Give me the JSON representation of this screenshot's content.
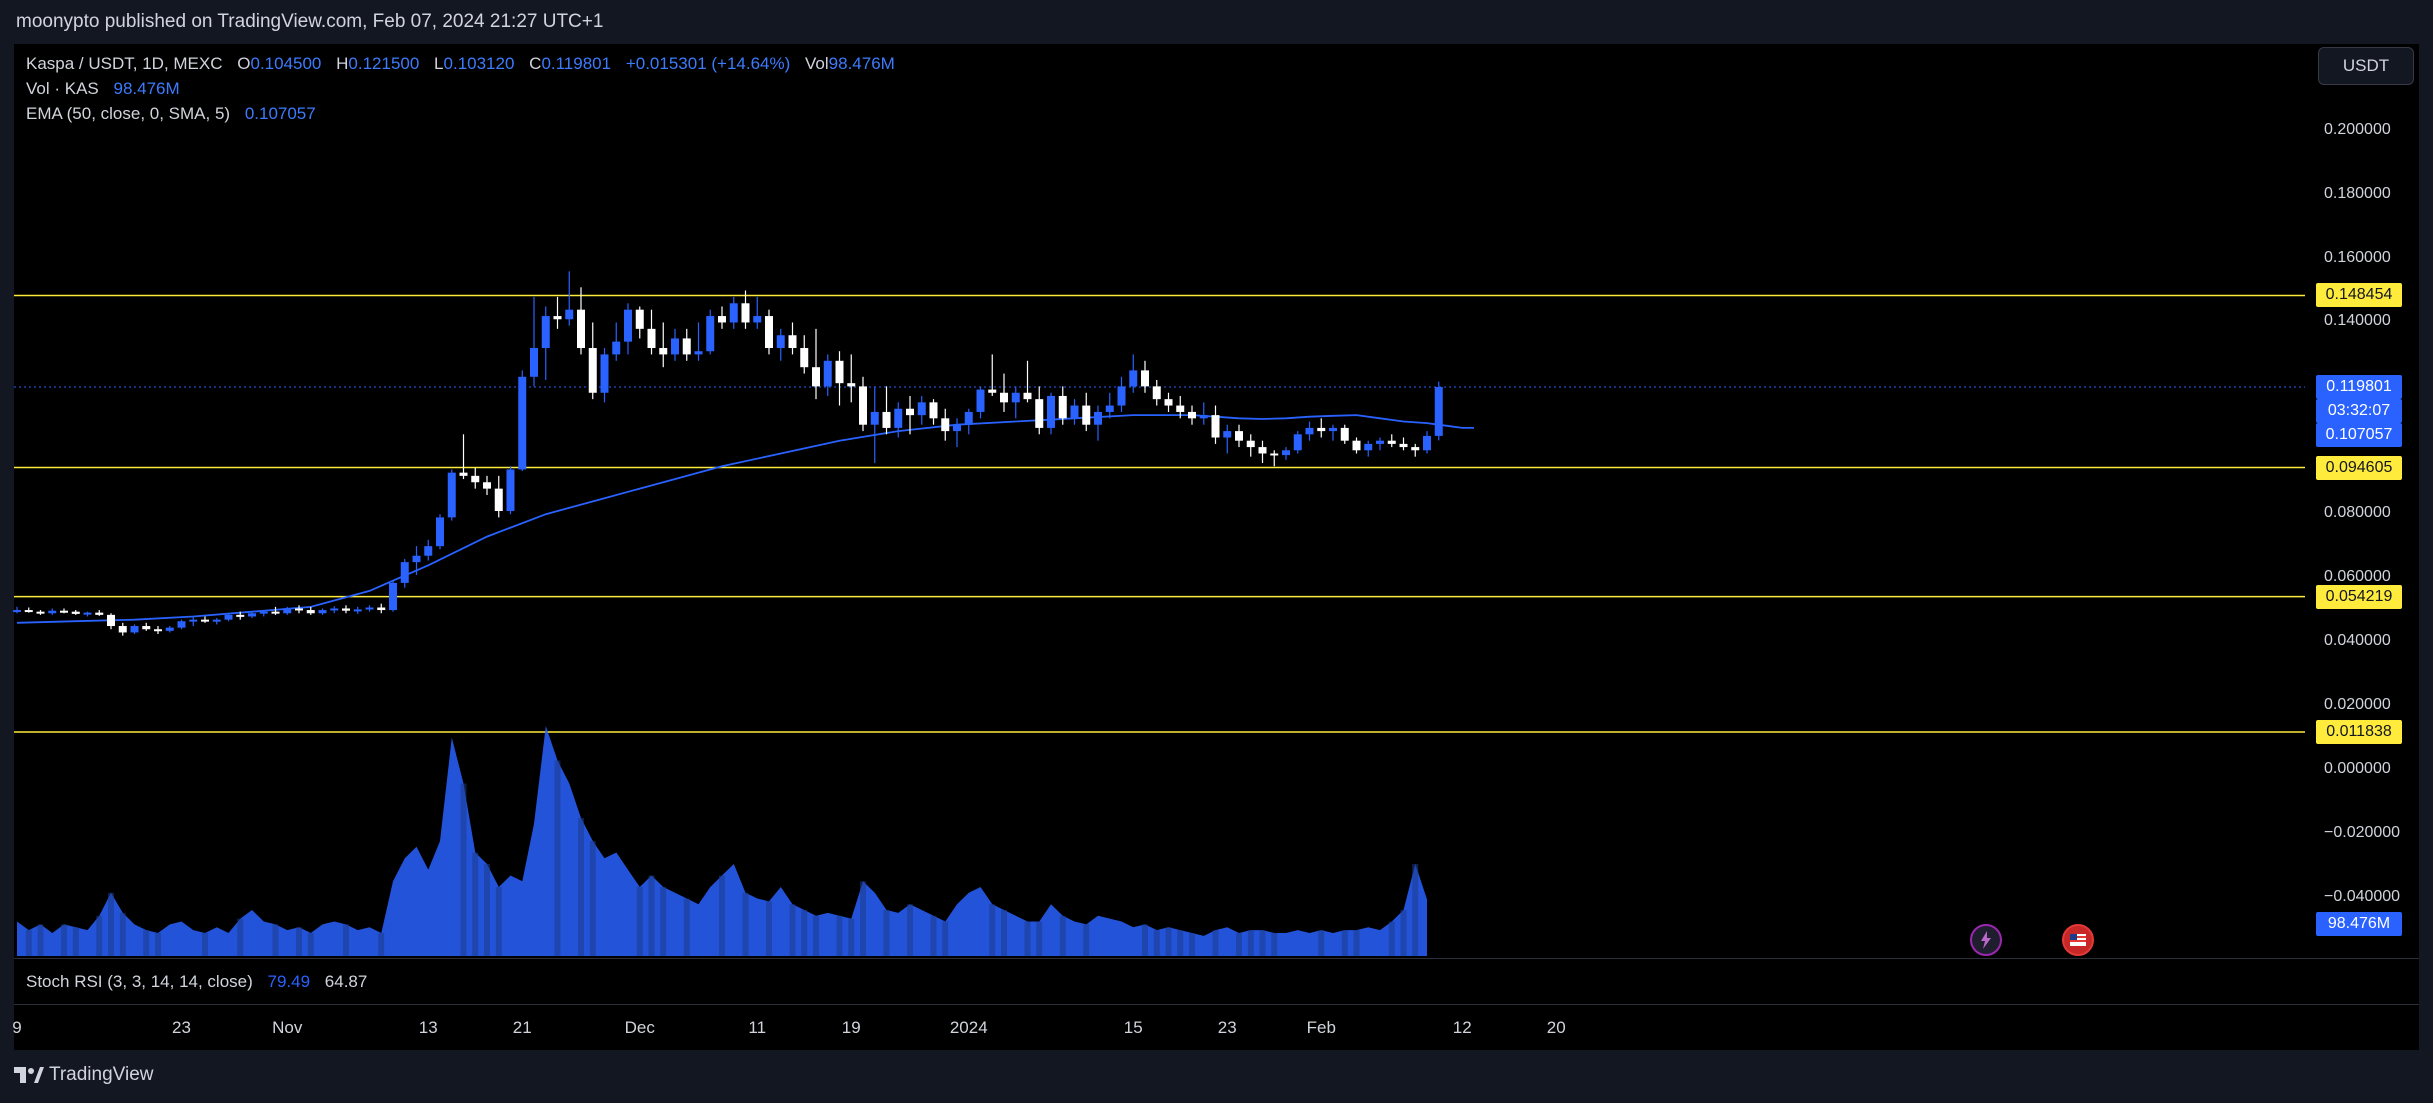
{
  "publish_line": "moonypto published on TradingView.com, Feb 07, 2024 21:27 UTC+1",
  "legend": {
    "symbol": "Kaspa / USDT, 1D, MEXC",
    "o_label": "O",
    "o": "0.104500",
    "h_label": "H",
    "h": "0.121500",
    "l_label": "L",
    "l": "0.103120",
    "c_label": "C",
    "c": "0.119801",
    "change": "+0.015301 (+14.64%)",
    "vol_label": "Vol",
    "vol": "98.476M",
    "vol_line_label": "Vol · KAS",
    "vol_line_value": "98.476M",
    "ema_label": "EMA (50, close, 0, SMA, 5)",
    "ema_value": "0.107057",
    "stoch_label": "Stoch RSI (3, 3, 14, 14, close)",
    "stoch_k": "79.49",
    "stoch_d": "64.87"
  },
  "currency_button": "USDT",
  "footer_logo": "TradingView",
  "colors": {
    "bull": "#2962ff",
    "bear": "#ffffff",
    "ema": "#2962ff",
    "hline": "#ffeb3b",
    "volume": "#2962ff",
    "stoch_k": "#2962ff",
    "stoch_d": "#ffffff"
  },
  "chart_data": {
    "type": "candlestick",
    "y_ticks": [
      "0.200000",
      "0.180000",
      "0.160000",
      "0.140000",
      "0.080000",
      "0.060000",
      "0.040000",
      "0.020000",
      "0.000000",
      "−0.020000",
      "−0.040000"
    ],
    "y_tick_values": [
      0.2,
      0.18,
      0.16,
      0.14,
      0.08,
      0.06,
      0.04,
      0.02,
      0,
      -0.02,
      -0.04
    ],
    "ylim": [
      -0.057,
      0.219
    ],
    "x_ticks": [
      "9",
      "23",
      "Nov",
      "13",
      "21",
      "Dec",
      "11",
      "19",
      "2024",
      "15",
      "23",
      "Feb",
      "12",
      "20"
    ],
    "x_tick_days": [
      0,
      14,
      23,
      35,
      43,
      53,
      63,
      71,
      81,
      95,
      103,
      111,
      123,
      131
    ],
    "horizontal_levels": [
      {
        "value": 0.148454,
        "label": "0.148454"
      },
      {
        "value": 0.094605,
        "label": "0.094605"
      },
      {
        "value": 0.054219,
        "label": "0.054219"
      },
      {
        "value": 0.011838,
        "label": "0.011838"
      }
    ],
    "last_price": {
      "value": 0.119801,
      "label": "0.119801",
      "countdown": "03:32:07"
    },
    "ema_last": {
      "value": 0.107057,
      "label": "0.107057"
    },
    "volume_last": {
      "label": "98.476M"
    },
    "candles": [
      [
        0.0495,
        0.051,
        0.049,
        0.05
      ],
      [
        0.05,
        0.0508,
        0.0492,
        0.0495
      ],
      [
        0.0495,
        0.05,
        0.0485,
        0.049
      ],
      [
        0.049,
        0.0505,
        0.0485,
        0.0498
      ],
      [
        0.0498,
        0.0505,
        0.049,
        0.0495
      ],
      [
        0.0495,
        0.05,
        0.0485,
        0.0488
      ],
      [
        0.0488,
        0.0495,
        0.048,
        0.0492
      ],
      [
        0.0492,
        0.05,
        0.0482,
        0.0485
      ],
      [
        0.0485,
        0.049,
        0.044,
        0.045
      ],
      [
        0.045,
        0.046,
        0.042,
        0.043
      ],
      [
        0.043,
        0.0455,
        0.0425,
        0.045
      ],
      [
        0.045,
        0.046,
        0.0435,
        0.044
      ],
      [
        0.044,
        0.045,
        0.0425,
        0.0435
      ],
      [
        0.0435,
        0.045,
        0.043,
        0.0445
      ],
      [
        0.0445,
        0.047,
        0.044,
        0.0465
      ],
      [
        0.0465,
        0.048,
        0.045,
        0.047
      ],
      [
        0.047,
        0.048,
        0.046,
        0.0465
      ],
      [
        0.0465,
        0.0475,
        0.0455,
        0.047
      ],
      [
        0.047,
        0.049,
        0.0465,
        0.0485
      ],
      [
        0.0485,
        0.0495,
        0.047,
        0.048
      ],
      [
        0.048,
        0.0495,
        0.0475,
        0.049
      ],
      [
        0.049,
        0.05,
        0.048,
        0.0495
      ],
      [
        0.0495,
        0.051,
        0.0485,
        0.049
      ],
      [
        0.049,
        0.051,
        0.0485,
        0.0505
      ],
      [
        0.0505,
        0.0515,
        0.049,
        0.05
      ],
      [
        0.05,
        0.051,
        0.0485,
        0.049
      ],
      [
        0.049,
        0.0505,
        0.0485,
        0.05
      ],
      [
        0.05,
        0.0512,
        0.049,
        0.0505
      ],
      [
        0.0505,
        0.0515,
        0.049,
        0.0498
      ],
      [
        0.0498,
        0.051,
        0.0488,
        0.0502
      ],
      [
        0.0502,
        0.0515,
        0.0495,
        0.0508
      ],
      [
        0.0508,
        0.052,
        0.049,
        0.05
      ],
      [
        0.05,
        0.059,
        0.0495,
        0.0585
      ],
      [
        0.0585,
        0.066,
        0.057,
        0.065
      ],
      [
        0.065,
        0.07,
        0.061,
        0.067
      ],
      [
        0.067,
        0.072,
        0.0655,
        0.07
      ],
      [
        0.07,
        0.08,
        0.069,
        0.079
      ],
      [
        0.079,
        0.094,
        0.078,
        0.093
      ],
      [
        0.093,
        0.105,
        0.091,
        0.092
      ],
      [
        0.092,
        0.0945,
        0.088,
        0.09
      ],
      [
        0.09,
        0.092,
        0.086,
        0.088
      ],
      [
        0.088,
        0.092,
        0.079,
        0.081
      ],
      [
        0.081,
        0.095,
        0.08,
        0.094
      ],
      [
        0.094,
        0.125,
        0.0935,
        0.123
      ],
      [
        0.123,
        0.148,
        0.12,
        0.132
      ],
      [
        0.132,
        0.145,
        0.122,
        0.142
      ],
      [
        0.142,
        0.148,
        0.138,
        0.141
      ],
      [
        0.141,
        0.156,
        0.139,
        0.144
      ],
      [
        0.144,
        0.151,
        0.13,
        0.132
      ],
      [
        0.132,
        0.14,
        0.116,
        0.118
      ],
      [
        0.118,
        0.132,
        0.115,
        0.13
      ],
      [
        0.13,
        0.14,
        0.128,
        0.134
      ],
      [
        0.134,
        0.146,
        0.13,
        0.144
      ],
      [
        0.144,
        0.145,
        0.135,
        0.138
      ],
      [
        0.138,
        0.144,
        0.13,
        0.132
      ],
      [
        0.132,
        0.14,
        0.126,
        0.13
      ],
      [
        0.13,
        0.138,
        0.128,
        0.135
      ],
      [
        0.135,
        0.138,
        0.128,
        0.13
      ],
      [
        0.13,
        0.14,
        0.128,
        0.131
      ],
      [
        0.131,
        0.144,
        0.13,
        0.142
      ],
      [
        0.142,
        0.145,
        0.138,
        0.14
      ],
      [
        0.14,
        0.148,
        0.138,
        0.146
      ],
      [
        0.146,
        0.15,
        0.138,
        0.14
      ],
      [
        0.14,
        0.148,
        0.138,
        0.142
      ],
      [
        0.142,
        0.144,
        0.13,
        0.132
      ],
      [
        0.132,
        0.138,
        0.128,
        0.136
      ],
      [
        0.136,
        0.14,
        0.13,
        0.132
      ],
      [
        0.132,
        0.136,
        0.124,
        0.126
      ],
      [
        0.126,
        0.138,
        0.116,
        0.12
      ],
      [
        0.12,
        0.13,
        0.117,
        0.128
      ],
      [
        0.128,
        0.131,
        0.114,
        0.121
      ],
      [
        0.121,
        0.13,
        0.115,
        0.12
      ],
      [
        0.12,
        0.123,
        0.106,
        0.108
      ],
      [
        0.108,
        0.12,
        0.096,
        0.112
      ],
      [
        0.112,
        0.12,
        0.105,
        0.107
      ],
      [
        0.107,
        0.115,
        0.104,
        0.113
      ],
      [
        0.113,
        0.117,
        0.105,
        0.111
      ],
      [
        0.111,
        0.117,
        0.108,
        0.115
      ],
      [
        0.115,
        0.116,
        0.108,
        0.11
      ],
      [
        0.11,
        0.113,
        0.103,
        0.106
      ],
      [
        0.106,
        0.11,
        0.101,
        0.108
      ],
      [
        0.108,
        0.113,
        0.105,
        0.112
      ],
      [
        0.112,
        0.12,
        0.11,
        0.119
      ],
      [
        0.119,
        0.13,
        0.117,
        0.118
      ],
      [
        0.118,
        0.124,
        0.112,
        0.115
      ],
      [
        0.115,
        0.12,
        0.11,
        0.118
      ],
      [
        0.118,
        0.128,
        0.115,
        0.116
      ],
      [
        0.116,
        0.12,
        0.105,
        0.107
      ],
      [
        0.107,
        0.118,
        0.105,
        0.117
      ],
      [
        0.117,
        0.12,
        0.108,
        0.11
      ],
      [
        0.11,
        0.116,
        0.108,
        0.114
      ],
      [
        0.114,
        0.118,
        0.106,
        0.108
      ],
      [
        0.108,
        0.114,
        0.103,
        0.112
      ],
      [
        0.112,
        0.118,
        0.11,
        0.114
      ],
      [
        0.114,
        0.123,
        0.112,
        0.12
      ],
      [
        0.12,
        0.13,
        0.118,
        0.125
      ],
      [
        0.125,
        0.128,
        0.118,
        0.12
      ],
      [
        0.12,
        0.122,
        0.114,
        0.116
      ],
      [
        0.116,
        0.118,
        0.112,
        0.114
      ],
      [
        0.114,
        0.117,
        0.11,
        0.112
      ],
      [
        0.112,
        0.114,
        0.108,
        0.11
      ],
      [
        0.11,
        0.115,
        0.108,
        0.111
      ],
      [
        0.111,
        0.114,
        0.102,
        0.104
      ],
      [
        0.104,
        0.108,
        0.099,
        0.106
      ],
      [
        0.106,
        0.108,
        0.101,
        0.103
      ],
      [
        0.103,
        0.105,
        0.098,
        0.101
      ],
      [
        0.101,
        0.103,
        0.096,
        0.099
      ],
      [
        0.099,
        0.1,
        0.095,
        0.0985
      ],
      [
        0.0985,
        0.101,
        0.097,
        0.1
      ],
      [
        0.1,
        0.106,
        0.099,
        0.105
      ],
      [
        0.105,
        0.109,
        0.103,
        0.107
      ],
      [
        0.107,
        0.11,
        0.104,
        0.106
      ],
      [
        0.106,
        0.108,
        0.103,
        0.107
      ],
      [
        0.107,
        0.108,
        0.102,
        0.103
      ],
      [
        0.103,
        0.104,
        0.099,
        0.1
      ],
      [
        0.1,
        0.103,
        0.098,
        0.102
      ],
      [
        0.102,
        0.104,
        0.1,
        0.103
      ],
      [
        0.103,
        0.105,
        0.101,
        0.102
      ],
      [
        0.102,
        0.104,
        0.1,
        0.101
      ],
      [
        0.101,
        0.102,
        0.098,
        0.1
      ],
      [
        0.1,
        0.106,
        0.099,
        0.1045
      ],
      [
        0.1045,
        0.1215,
        0.1031,
        0.1198
      ]
    ],
    "ema": [
      0.046,
      0.0465,
      0.047,
      0.048,
      0.0495,
      0.051,
      0.056,
      0.064,
      0.073,
      0.08,
      0.085,
      0.09,
      0.095,
      0.099,
      0.103,
      0.106,
      0.108,
      0.109,
      0.11,
      0.111,
      0.111,
      0.1105,
      0.11,
      0.1098,
      0.11,
      0.1105,
      0.1108,
      0.111,
      0.11,
      0.109,
      0.1085,
      0.108,
      0.1075,
      0.107,
      0.107
    ],
    "ema_days": [
      0,
      5,
      10,
      15,
      20,
      25,
      30,
      35,
      40,
      45,
      50,
      55,
      60,
      65,
      70,
      75,
      80,
      85,
      90,
      95,
      100,
      102,
      104,
      106,
      108,
      110,
      112,
      114,
      116,
      118,
      120,
      121,
      122,
      123,
      124
    ],
    "volume_m": [
      60,
      45,
      55,
      40,
      55,
      50,
      45,
      70,
      110,
      75,
      55,
      45,
      40,
      55,
      60,
      45,
      40,
      50,
      40,
      65,
      80,
      60,
      55,
      45,
      50,
      40,
      55,
      60,
      55,
      45,
      50,
      40,
      130,
      170,
      190,
      150,
      200,
      380,
      300,
      180,
      160,
      120,
      140,
      130,
      230,
      400,
      340,
      300,
      240,
      200,
      170,
      180,
      150,
      120,
      140,
      120,
      110,
      100,
      90,
      120,
      140,
      160,
      110,
      100,
      95,
      120,
      90,
      80,
      70,
      75,
      70,
      65,
      130,
      110,
      80,
      75,
      90,
      80,
      70,
      60,
      90,
      110,
      120,
      90,
      80,
      70,
      60,
      60,
      90,
      70,
      60,
      55,
      70,
      65,
      60,
      50,
      55,
      45,
      50,
      45,
      40,
      35,
      45,
      50,
      40,
      45,
      45,
      40,
      40,
      45,
      40,
      45,
      40,
      45,
      45,
      50,
      45,
      60,
      80,
      160,
      98.476
    ],
    "volume_axis_note": "volume pane (millions)",
    "stoch": {
      "k": 79.49,
      "d": 64.87
    }
  }
}
